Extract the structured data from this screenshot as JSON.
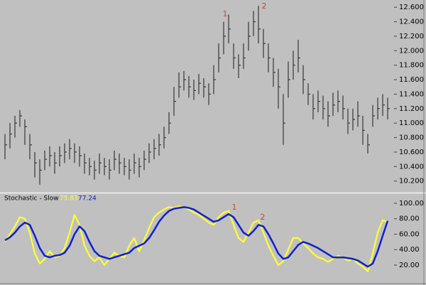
{
  "chart_data": [
    {
      "type": "ohlc",
      "color": "#404040",
      "high": [
        10.85,
        11.0,
        11.1,
        11.18,
        11.05,
        10.85,
        10.6,
        10.5,
        10.62,
        10.68,
        10.6,
        10.68,
        10.72,
        10.78,
        10.72,
        10.68,
        10.58,
        10.52,
        10.48,
        10.58,
        10.52,
        10.5,
        10.62,
        10.58,
        10.52,
        10.5,
        10.58,
        10.52,
        10.62,
        10.72,
        10.78,
        10.85,
        10.95,
        11.15,
        11.5,
        11.7,
        11.72,
        11.65,
        11.6,
        11.68,
        11.62,
        11.55,
        11.8,
        12.1,
        12.4,
        12.5,
        12.1,
        11.95,
        12.1,
        12.4,
        12.55,
        12.62,
        12.3,
        12.1,
        11.9,
        11.75,
        11.4,
        11.85,
        12.0,
        12.15,
        11.8,
        11.55,
        11.4,
        11.45,
        11.38,
        11.3,
        11.42,
        11.45,
        11.38,
        11.2,
        11.2,
        11.3,
        11.1,
        10.85,
        11.25,
        11.35,
        11.4,
        11.35
      ],
      "low": [
        10.5,
        10.65,
        10.8,
        10.95,
        10.7,
        10.5,
        10.25,
        10.15,
        10.35,
        10.4,
        10.3,
        10.4,
        10.45,
        10.5,
        10.45,
        10.4,
        10.3,
        10.28,
        10.22,
        10.3,
        10.28,
        10.22,
        10.35,
        10.3,
        10.28,
        10.22,
        10.3,
        10.25,
        10.35,
        10.45,
        10.5,
        10.55,
        10.65,
        10.85,
        11.1,
        11.35,
        11.45,
        11.35,
        11.32,
        11.4,
        11.35,
        11.25,
        11.4,
        11.7,
        11.95,
        12.1,
        11.75,
        11.62,
        11.75,
        12.0,
        12.2,
        12.1,
        11.9,
        11.7,
        11.5,
        11.2,
        10.7,
        11.35,
        11.6,
        11.7,
        11.4,
        11.25,
        11.05,
        11.15,
        11.05,
        10.95,
        11.1,
        11.15,
        11.05,
        10.85,
        10.9,
        10.95,
        10.7,
        10.58,
        10.95,
        11.05,
        11.1,
        11.05
      ],
      "close": [
        10.7,
        10.85,
        11.0,
        11.1,
        10.95,
        10.7,
        10.45,
        10.35,
        10.5,
        10.55,
        10.45,
        10.55,
        10.6,
        10.65,
        10.6,
        10.55,
        10.45,
        10.4,
        10.35,
        10.45,
        10.4,
        10.35,
        10.5,
        10.45,
        10.4,
        10.35,
        10.45,
        10.4,
        10.5,
        10.6,
        10.65,
        10.7,
        10.8,
        11.0,
        11.3,
        11.5,
        11.6,
        11.5,
        11.45,
        11.55,
        11.5,
        11.4,
        11.6,
        11.9,
        12.2,
        12.3,
        11.9,
        11.8,
        11.9,
        12.2,
        12.4,
        12.3,
        12.1,
        11.9,
        11.7,
        11.5,
        11.0,
        11.6,
        11.8,
        11.9,
        11.6,
        11.4,
        11.2,
        11.3,
        11.2,
        11.1,
        11.25,
        11.3,
        11.2,
        11.0,
        11.05,
        11.1,
        10.9,
        10.7,
        11.1,
        11.2,
        11.25,
        11.2
      ],
      "ylim": [
        10.05,
        12.7
      ],
      "yticks": [
        {
          "value": 10.2,
          "label": "10.200"
        },
        {
          "value": 10.4,
          "label": "10.400"
        },
        {
          "value": 10.6,
          "label": "10.600"
        },
        {
          "value": 10.8,
          "label": "10.800"
        },
        {
          "value": 11.0,
          "label": "11.000"
        },
        {
          "value": 11.2,
          "label": "11.200"
        },
        {
          "value": 11.4,
          "label": "11.400"
        },
        {
          "value": 11.6,
          "label": "11.600"
        },
        {
          "value": 11.8,
          "label": "11.800"
        },
        {
          "value": 12.0,
          "label": "12.000"
        },
        {
          "value": 12.2,
          "label": "12.200"
        },
        {
          "value": 12.4,
          "label": "12.400"
        },
        {
          "value": 12.6,
          "label": "12.600"
        }
      ],
      "annotations": [
        "1",
        "2"
      ]
    },
    {
      "type": "line",
      "title": "Stochastic - Slow",
      "series": [
        {
          "color": "#ffff33",
          "values": [
            50,
            60,
            70,
            82,
            80,
            62,
            35,
            22,
            28,
            38,
            30,
            32,
            42,
            62,
            85,
            72,
            45,
            32,
            25,
            30,
            20,
            28,
            36,
            32,
            30,
            45,
            55,
            38,
            52,
            68,
            82,
            88,
            92,
            95,
            94,
            96,
            95,
            92,
            88,
            85,
            80,
            75,
            72,
            82,
            88,
            90,
            72,
            55,
            50,
            62,
            75,
            78,
            62,
            45,
            32,
            20,
            25,
            40,
            55,
            55,
            48,
            42,
            35,
            30,
            28,
            24,
            28,
            32,
            30,
            26,
            28,
            22,
            18,
            12,
            35,
            62,
            78,
            75.83
          ]
        },
        {
          "color": "#1020c8",
          "values": [
            52,
            56,
            62,
            70,
            75,
            72,
            58,
            42,
            32,
            30,
            32,
            33,
            36,
            45,
            60,
            70,
            64,
            50,
            38,
            32,
            30,
            28,
            30,
            32,
            34,
            36,
            42,
            45,
            48,
            55,
            65,
            76,
            84,
            90,
            93,
            94,
            95,
            94,
            92,
            88,
            84,
            80,
            76,
            78,
            82,
            86,
            82,
            72,
            62,
            58,
            64,
            72,
            70,
            60,
            48,
            35,
            28,
            30,
            38,
            46,
            50,
            48,
            45,
            42,
            38,
            34,
            30,
            30,
            30,
            29,
            28,
            26,
            22,
            18,
            22,
            38,
            58,
            77.24
          ]
        }
      ],
      "ylim": [
        0,
        105.5
      ],
      "yticks": [
        {
          "value": 20,
          "label": "20.00"
        },
        {
          "value": 40,
          "label": "40.00"
        },
        {
          "value": 60,
          "label": "60.00"
        },
        {
          "value": 80,
          "label": "80.00"
        },
        {
          "value": 100,
          "label": "100.00"
        }
      ],
      "annotations": [
        "1",
        "2"
      ]
    }
  ]
}
